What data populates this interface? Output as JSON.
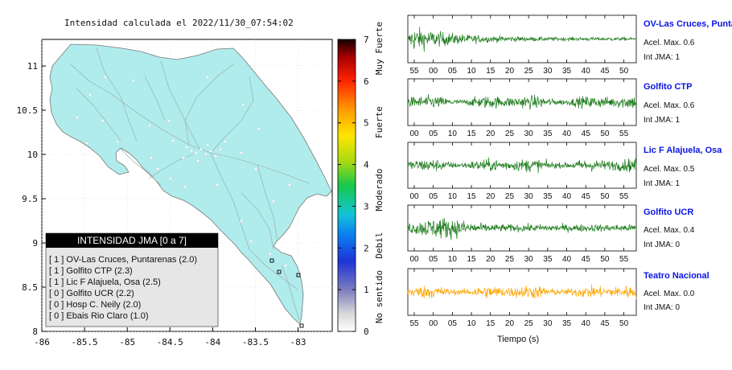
{
  "map": {
    "title": "Intensidad calculada el 2022/11/30_07:54:02",
    "xlim": [
      -86,
      -82.6
    ],
    "ylim": [
      8,
      11.3
    ],
    "xticks": [
      "-86",
      "-85.5",
      "-85",
      "-84.5",
      "-84",
      "-83.5",
      "-83"
    ],
    "yticks": [
      "11",
      "10.5",
      "10",
      "9.5",
      "9",
      "8.5",
      "8"
    ],
    "land_color": "#b0ecec"
  },
  "colorbar": {
    "min": 0,
    "max": 7,
    "ticks": [
      "0",
      "1",
      "2",
      "3",
      "4",
      "5",
      "6",
      "7"
    ],
    "labels": [
      "No sentido",
      "Debil",
      "Moderado",
      "Fuerte",
      "Muy Fuerte"
    ]
  },
  "legend": {
    "title": "INTENSIDAD JMA [0 a 7]",
    "items": [
      "[ 1 ]  OV-Las Cruces, Puntarenas (2.0)",
      "[ 1 ]  Golfito CTP (2.3)",
      "[ 1 ]  Lic F Alajuela, Osa (2.5)",
      "[ 0 ]  Golfito UCR (2.2)",
      "[ 0 ]  Hosp C. Neily (2.0)",
      "[ 0 ]  Ebais Rio Claro (1.0)"
    ]
  },
  "chart_data": {
    "type": "line",
    "xlabel": "Tiempo (s)",
    "series": [
      {
        "name": "OV-Las Cruces, Puntar",
        "acc_label": "Acel. Max. 0.6",
        "jma_label": "Int JMA: 1",
        "color": "#1a7a1a",
        "ticks": [
          "55",
          "00",
          "05",
          "10",
          "15",
          "20",
          "25",
          "30",
          "35",
          "40",
          "45",
          "50"
        ],
        "envelope": "early-peak-decay"
      },
      {
        "name": "Golfito CTP",
        "acc_label": "Acel. Max. 0.6",
        "jma_label": "Int JMA: 1",
        "color": "#1a7a1a",
        "ticks": [
          "00",
          "05",
          "10",
          "15",
          "20",
          "25",
          "30",
          "35",
          "40",
          "45",
          "50",
          "55"
        ],
        "envelope": "steady"
      },
      {
        "name": "Lic F Alajuela, Osa",
        "acc_label": "Acel. Max. 0.5",
        "jma_label": "Int JMA: 1",
        "color": "#1a7a1a",
        "ticks": [
          "00",
          "05",
          "10",
          "15",
          "20",
          "25",
          "30",
          "35",
          "40",
          "45",
          "50",
          "55"
        ],
        "envelope": "steady"
      },
      {
        "name": "Golfito UCR",
        "acc_label": "Acel. Max. 0.4",
        "jma_label": "Int JMA: 0",
        "color": "#1a7a1a",
        "ticks": [
          "00",
          "05",
          "10",
          "15",
          "20",
          "25",
          "30",
          "35",
          "40",
          "45",
          "50",
          "55"
        ],
        "envelope": "early-burst"
      },
      {
        "name": "Teatro Nacional",
        "acc_label": "Acel. Max. 0.0",
        "jma_label": "Int JMA: 0",
        "color": "#ffa500",
        "ticks": [
          "55",
          "00",
          "05",
          "10",
          "15",
          "20",
          "25",
          "30",
          "35",
          "40",
          "45",
          "50"
        ],
        "envelope": "steady"
      }
    ]
  }
}
